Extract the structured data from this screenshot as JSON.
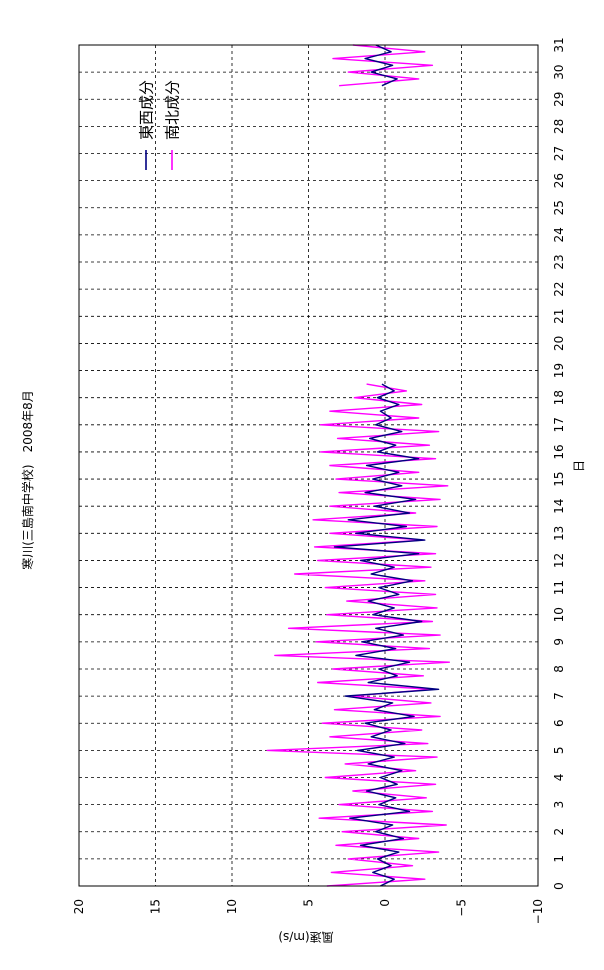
{
  "chart_data": {
    "type": "line",
    "title": "寒川(三島南中学校)　2008年8月",
    "xlabel": "日",
    "ylabel": "風速(m/s)",
    "xlim": [
      0,
      31
    ],
    "ylim": [
      -10,
      20
    ],
    "x_ticks": [
      0,
      1,
      2,
      3,
      4,
      5,
      6,
      7,
      8,
      9,
      10,
      11,
      12,
      13,
      14,
      15,
      16,
      17,
      18,
      19,
      20,
      21,
      22,
      23,
      24,
      25,
      26,
      27,
      28,
      29,
      30,
      31
    ],
    "y_ticks": [
      -10,
      -5,
      0,
      5,
      10,
      15,
      20
    ],
    "grid": true,
    "legend_position": "top-right",
    "rotated": "chart drawn rotated 90° counter-clockwise; day axis runs bottom-to-top",
    "series": [
      {
        "name": "東西成分",
        "color": "#000080",
        "segments": [
          {
            "x": [
              0,
              0.25,
              0.5,
              0.75,
              1,
              1.25,
              1.5,
              1.75,
              2,
              2.25,
              2.5,
              2.75,
              3,
              3.25,
              3.5,
              3.75,
              4,
              4.25,
              4.5,
              4.75,
              5,
              5.25,
              5.5,
              5.75,
              6,
              6.25,
              6.5,
              6.75,
              7,
              7.25,
              7.5,
              7.75,
              8,
              8.25,
              8.5,
              8.75,
              9,
              9.25,
              9.5,
              9.75,
              10,
              10.25,
              10.5,
              10.75,
              11,
              11.25,
              11.5,
              11.75,
              12,
              12.25,
              12.5,
              12.75,
              13,
              13.25,
              13.5,
              13.75,
              14,
              14.25,
              14.5,
              14.75,
              15,
              15.25,
              15.5,
              15.75,
              16,
              16.25,
              16.5,
              16.75,
              17,
              17.25,
              17.5,
              17.75,
              18,
              18.25,
              18.5
            ],
            "y": [
              0.3,
              -0.6,
              0.8,
              -0.4,
              0.5,
              -0.9,
              1.6,
              -1.2,
              0.6,
              -0.5,
              2.3,
              -1.6,
              0.4,
              -0.7,
              1.2,
              -0.8,
              0.3,
              -1.1,
              1.1,
              -0.6,
              1.8,
              -1.3,
              0.9,
              -0.4,
              1.3,
              -1.9,
              0.7,
              -0.5,
              2.6,
              -3.5,
              1.1,
              -0.8,
              0.4,
              -1.6,
              1.9,
              -0.7,
              1.5,
              -1.2,
              0.6,
              -2.4,
              0.8,
              -0.6,
              1.1,
              -0.9,
              0.4,
              -1.8,
              0.9,
              -0.6,
              1.6,
              -2.2,
              3.3,
              -2.6,
              1.9,
              -1.4,
              2.4,
              -1.6,
              0.7,
              -2.0,
              1.3,
              -1.1,
              0.8,
              -0.9,
              1.2,
              -2.2,
              0.5,
              -0.7,
              1.0,
              -1.1,
              0.6,
              -0.4,
              0.3,
              -0.9,
              0.5,
              -0.6,
              0.2
            ]
          },
          {
            "x": [
              29.5,
              29.75,
              30,
              30.25,
              30.5,
              30.75,
              31
            ],
            "y": [
              0.2,
              -0.8,
              0.9,
              -0.5,
              1.3,
              -0.4,
              0.6
            ]
          }
        ]
      },
      {
        "name": "南北成分",
        "color": "#ff00ff",
        "segments": [
          {
            "x": [
              0,
              0.25,
              0.5,
              0.75,
              1,
              1.25,
              1.5,
              1.75,
              2,
              2.25,
              2.5,
              2.75,
              3,
              3.25,
              3.5,
              3.75,
              4,
              4.25,
              4.5,
              4.75,
              5,
              5.25,
              5.5,
              5.75,
              6,
              6.25,
              6.5,
              6.75,
              7,
              7.25,
              7.5,
              7.75,
              8,
              8.25,
              8.5,
              8.75,
              9,
              9.25,
              9.5,
              9.75,
              10,
              10.25,
              10.5,
              10.75,
              11,
              11.25,
              11.5,
              11.75,
              12,
              12.25,
              12.5,
              12.75,
              13,
              13.25,
              13.5,
              13.75,
              14,
              14.25,
              14.5,
              14.75,
              15,
              15.25,
              15.5,
              15.75,
              16,
              16.25,
              16.5,
              16.75,
              17,
              17.25,
              17.5,
              17.75,
              18,
              18.25,
              18.5
            ],
            "y": [
              3.8,
              -2.6,
              3.5,
              -1.8,
              2.4,
              -3.5,
              3.2,
              -2.2,
              2.8,
              -4.0,
              4.3,
              -3.1,
              3.0,
              -2.7,
              2.1,
              -3.3,
              3.9,
              -2.0,
              2.6,
              -3.4,
              7.7,
              -2.8,
              3.6,
              -2.4,
              4.1,
              -3.6,
              3.3,
              -3.0,
              2.2,
              -3.1,
              4.4,
              -2.5,
              3.4,
              -4.2,
              7.2,
              -2.9,
              4.5,
              -3.6,
              6.3,
              -3.1,
              3.8,
              -3.4,
              2.5,
              -3.3,
              3.9,
              -2.6,
              5.9,
              -3.0,
              4.4,
              -3.3,
              4.6,
              -2.5,
              3.6,
              -3.4,
              4.7,
              -2.0,
              3.6,
              -3.6,
              3.0,
              -4.1,
              3.2,
              -2.2,
              3.6,
              -3.3,
              4.2,
              -2.9,
              3.1,
              -3.5,
              4.2,
              -2.2,
              3.6,
              -2.4,
              2.0,
              -1.4,
              1.2
            ]
          },
          {
            "x": [
              29.5,
              29.75,
              30,
              30.25,
              30.5,
              30.75,
              31
            ],
            "y": [
              3.0,
              -2.2,
              2.4,
              -3.1,
              3.4,
              -2.6,
              2.1
            ]
          }
        ]
      }
    ]
  }
}
